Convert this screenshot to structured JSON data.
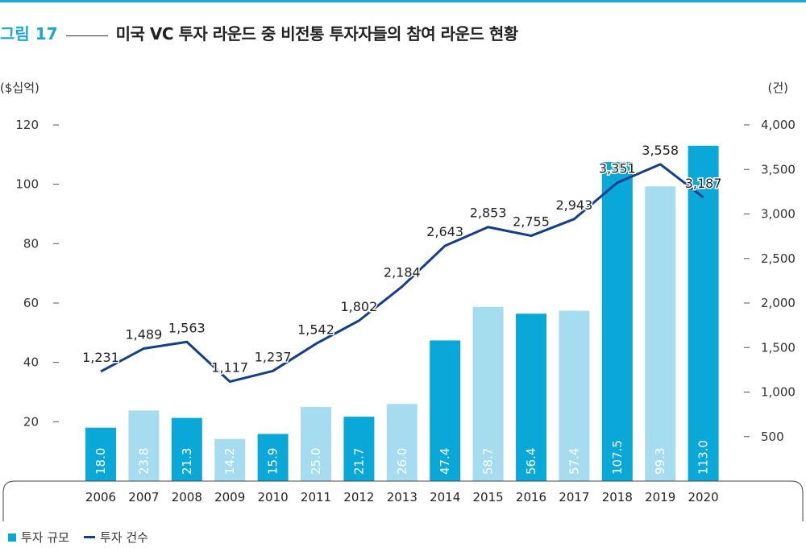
{
  "header": {
    "figure_label": "그림 17",
    "title": "미국 VC 투자 라운드 중 비전통 투자자들의 참여 라운드 현황"
  },
  "chart_data": {
    "type": "bar+line",
    "categories": [
      "2006",
      "2007",
      "2008",
      "2009",
      "2010",
      "2011",
      "2012",
      "2013",
      "2014",
      "2015",
      "2016",
      "2017",
      "2018",
      "2019",
      "2020"
    ],
    "series": [
      {
        "name": "투자 규모",
        "type": "bar",
        "axis": "left",
        "values": [
          18.0,
          23.8,
          21.3,
          14.2,
          15.9,
          25.0,
          21.7,
          26.0,
          47.4,
          58.7,
          56.4,
          57.4,
          107.5,
          99.3,
          113.0
        ],
        "labels": [
          "18.0",
          "23.8",
          "21.3",
          "14.2",
          "15.9",
          "25.0",
          "21.7",
          "26.0",
          "47.4",
          "58.7",
          "56.4",
          "57.4",
          "107.5",
          "99.3",
          "113.0"
        ],
        "colors": [
          "#0aa8d8",
          "#a6dcf0",
          "#0aa8d8",
          "#a6dcf0",
          "#0aa8d8",
          "#a6dcf0",
          "#0aa8d8",
          "#a6dcf0",
          "#0aa8d8",
          "#a6dcf0",
          "#0aa8d8",
          "#a6dcf0",
          "#0aa8d8",
          "#a6dcf0",
          "#0aa8d8"
        ]
      },
      {
        "name": "투자 건수",
        "type": "line",
        "axis": "right",
        "color": "#123f8c",
        "values": [
          1231,
          1489,
          1563,
          1117,
          1237,
          1542,
          1802,
          2184,
          2643,
          2853,
          2755,
          2943,
          3351,
          3558,
          3187
        ],
        "labels": [
          "1,231",
          "1,489",
          "1,563",
          "1,117",
          "1,237",
          "1,542",
          "1,802",
          "2,184",
          "2,643",
          "2,853",
          "2,755",
          "2,943",
          "3,351",
          "3,558",
          "3,187"
        ]
      }
    ],
    "y_left": {
      "unit": "($십억)",
      "ylim": [
        0,
        120
      ],
      "ticks": [
        20,
        40,
        60,
        80,
        100,
        120
      ],
      "tick_labels": [
        "20",
        "40",
        "60",
        "80",
        "100",
        "120"
      ]
    },
    "y_right": {
      "unit": "(건)",
      "ylim": [
        0,
        4000
      ],
      "ticks": [
        500,
        1000,
        1500,
        2000,
        2500,
        3000,
        3500,
        4000
      ],
      "tick_labels": [
        "500",
        "1,000",
        "1,500",
        "2,000",
        "2,500",
        "3,000",
        "3,500",
        "4,000"
      ]
    },
    "legend": {
      "position": "bottom-left",
      "items": [
        "투자 규모",
        "투자 건수"
      ]
    },
    "grid": false
  },
  "style": {
    "accent": "#18a8d8",
    "bar_dark": "#0aa8d8",
    "bar_light": "#a6dcf0",
    "line": "#123f8c"
  }
}
